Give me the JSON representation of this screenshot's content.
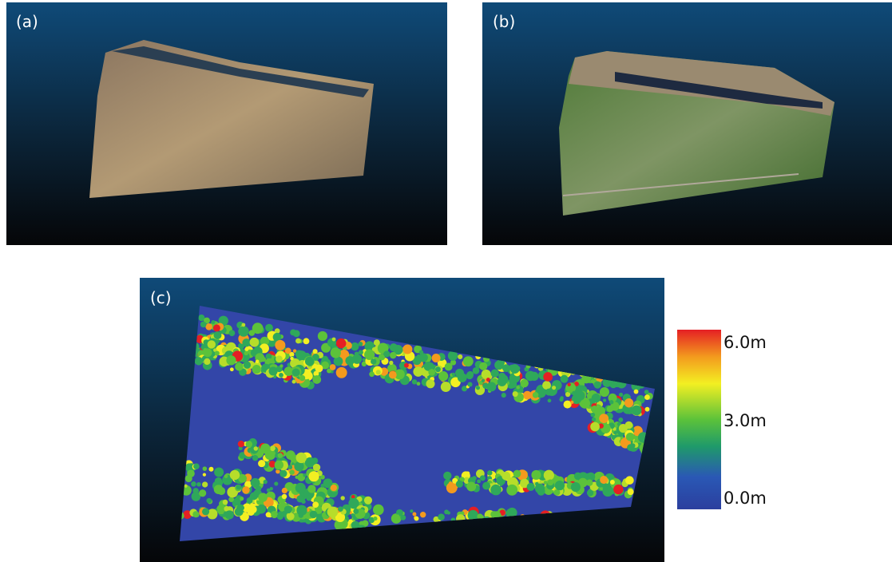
{
  "panels": [
    {
      "label": "(a)"
    },
    {
      "label": "(b)"
    },
    {
      "label": "(c)"
    }
  ],
  "colorbar": {
    "labels": [
      "6.0m",
      "3.0m",
      "0.0m"
    ]
  }
}
